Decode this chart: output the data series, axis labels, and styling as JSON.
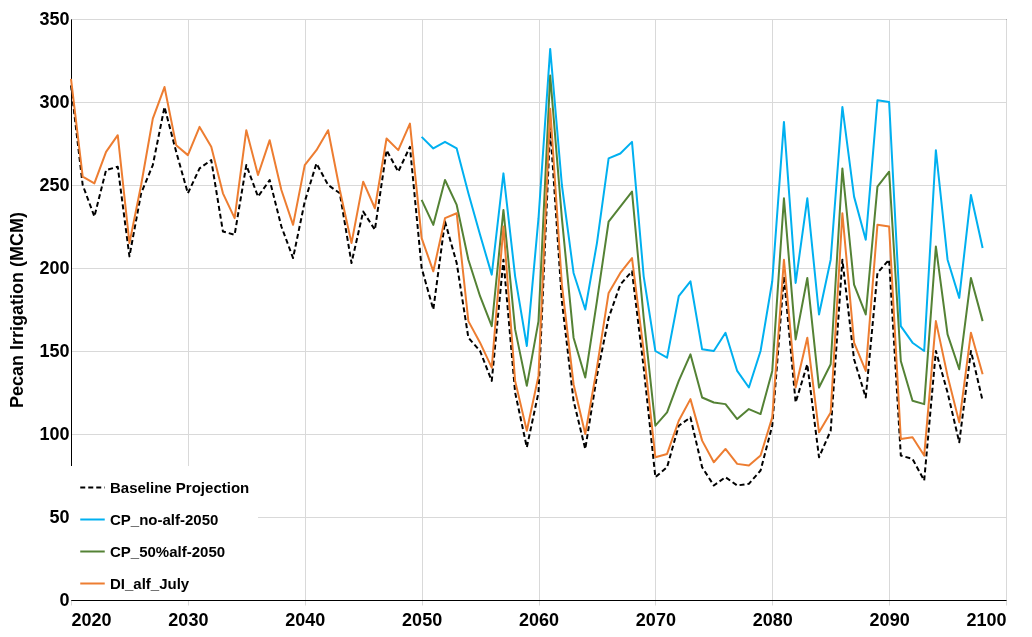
{
  "chart_data": {
    "type": "line",
    "ylabel": "Pecan Irrigation (MCM)",
    "xlim": [
      2020,
      2100
    ],
    "xticks": [
      2020,
      2030,
      2040,
      2050,
      2060,
      2070,
      2080,
      2090,
      2100
    ],
    "ylim": [
      0,
      350
    ],
    "yticks": [
      0,
      50,
      100,
      150,
      200,
      250,
      300,
      350
    ],
    "grid": true,
    "legend": "bottom left",
    "marker": "none",
    "series": [
      {
        "name": "Baseline Projection",
        "color": "#000000",
        "line_style": "dashed",
        "x": [
          2020,
          2021,
          2022,
          2023,
          2024,
          2025,
          2026,
          2027,
          2028,
          2029,
          2030,
          2031,
          2032,
          2033,
          2034,
          2035,
          2036,
          2037,
          2038,
          2039,
          2040,
          2041,
          2042,
          2043,
          2044,
          2045,
          2046,
          2047,
          2048,
          2049,
          2050,
          2051,
          2052,
          2053,
          2054,
          2055,
          2056,
          2057,
          2058,
          2059,
          2060,
          2061,
          2062,
          2063,
          2064,
          2065,
          2066,
          2067,
          2068,
          2069,
          2070,
          2071,
          2072,
          2073,
          2074,
          2075,
          2076,
          2077,
          2078,
          2079,
          2080,
          2081,
          2082,
          2083,
          2084,
          2085,
          2086,
          2087,
          2088,
          2089,
          2090,
          2091,
          2092,
          2093,
          2094,
          2095,
          2096,
          2097,
          2098
        ],
        "values": [
          310,
          250,
          231,
          259,
          261,
          207,
          245,
          262,
          297,
          270,
          245,
          260,
          265,
          222,
          220,
          262,
          243,
          253,
          225,
          206,
          240,
          263,
          250,
          245,
          203,
          234,
          223,
          271,
          258,
          273,
          200,
          175,
          228,
          203,
          158,
          150,
          132,
          205,
          125,
          92,
          125,
          285,
          180,
          120,
          91,
          135,
          170,
          190,
          198,
          140,
          74,
          80,
          105,
          110,
          80,
          69,
          74,
          69,
          70,
          78,
          105,
          195,
          119,
          142,
          86,
          102,
          205,
          145,
          122,
          197,
          205,
          87,
          85,
          72,
          150,
          125,
          95,
          150,
          120
        ]
      },
      {
        "name": "CP_no-alf-2050",
        "color": "#00b0f0",
        "line_style": "solid",
        "x": [
          2050,
          2051,
          2052,
          2053,
          2054,
          2055,
          2056,
          2057,
          2058,
          2059,
          2060,
          2061,
          2062,
          2063,
          2064,
          2065,
          2066,
          2067,
          2068,
          2069,
          2070,
          2071,
          2072,
          2073,
          2074,
          2075,
          2076,
          2077,
          2078,
          2079,
          2080,
          2081,
          2082,
          2083,
          2084,
          2085,
          2086,
          2087,
          2088,
          2089,
          2090,
          2091,
          2092,
          2093,
          2094,
          2095,
          2096,
          2097,
          2098
        ],
        "values": [
          279,
          272,
          276,
          272,
          245,
          220,
          196,
          257,
          195,
          153,
          230,
          332,
          250,
          197,
          175,
          215,
          266,
          269,
          276,
          195,
          150,
          146,
          183,
          192,
          151,
          150,
          161,
          138,
          128,
          150,
          192,
          288,
          191,
          242,
          172,
          205,
          297,
          243,
          217,
          301,
          300,
          165,
          155,
          150,
          271,
          205,
          182,
          244,
          212
        ]
      },
      {
        "name": "CP_50%alf-2050",
        "color": "#548235",
        "line_style": "solid",
        "x": [
          2050,
          2051,
          2052,
          2053,
          2054,
          2055,
          2056,
          2057,
          2058,
          2059,
          2060,
          2061,
          2062,
          2063,
          2064,
          2065,
          2066,
          2067,
          2068,
          2069,
          2070,
          2071,
          2072,
          2073,
          2074,
          2075,
          2076,
          2077,
          2078,
          2079,
          2080,
          2081,
          2082,
          2083,
          2084,
          2085,
          2086,
          2087,
          2088,
          2089,
          2090,
          2091,
          2092,
          2093,
          2094,
          2095,
          2096,
          2097,
          2098
        ],
        "values": [
          241,
          226,
          253,
          238,
          205,
          183,
          165,
          235,
          163,
          129,
          168,
          316,
          230,
          158,
          134,
          180,
          228,
          237,
          246,
          170,
          105,
          113,
          132,
          148,
          122,
          119,
          118,
          109,
          115,
          112,
          138,
          242,
          157,
          194,
          128,
          142,
          260,
          190,
          172,
          249,
          258,
          144,
          120,
          118,
          213,
          160,
          139,
          194,
          168
        ]
      },
      {
        "name": "DI_alf_July",
        "color": "#ed7d31",
        "line_style": "solid",
        "x": [
          2020,
          2021,
          2022,
          2023,
          2024,
          2025,
          2026,
          2027,
          2028,
          2029,
          2030,
          2031,
          2032,
          2033,
          2034,
          2035,
          2036,
          2037,
          2038,
          2039,
          2040,
          2041,
          2042,
          2043,
          2044,
          2045,
          2046,
          2047,
          2048,
          2049,
          2050,
          2051,
          2052,
          2053,
          2054,
          2055,
          2056,
          2057,
          2058,
          2059,
          2060,
          2061,
          2062,
          2063,
          2064,
          2065,
          2066,
          2067,
          2068,
          2069,
          2070,
          2071,
          2072,
          2073,
          2074,
          2075,
          2076,
          2077,
          2078,
          2079,
          2080,
          2081,
          2082,
          2083,
          2084,
          2085,
          2086,
          2087,
          2088,
          2089,
          2090,
          2091,
          2092,
          2093,
          2094,
          2095,
          2096,
          2097,
          2098
        ],
        "values": [
          314,
          255,
          251,
          270,
          280,
          215,
          250,
          290,
          309,
          274,
          268,
          285,
          273,
          245,
          230,
          283,
          256,
          277,
          247,
          226,
          262,
          271,
          283,
          247,
          215,
          252,
          236,
          278,
          271,
          287,
          218,
          198,
          230,
          233,
          168,
          155,
          140,
          225,
          132,
          102,
          135,
          296,
          190,
          130,
          100,
          140,
          185,
          197,
          206,
          150,
          86,
          88,
          108,
          121,
          96,
          83,
          91,
          82,
          81,
          87,
          110,
          205,
          128,
          158,
          101,
          113,
          233,
          155,
          138,
          226,
          225,
          97,
          98,
          87,
          168,
          135,
          107,
          161,
          136
        ]
      }
    ]
  }
}
